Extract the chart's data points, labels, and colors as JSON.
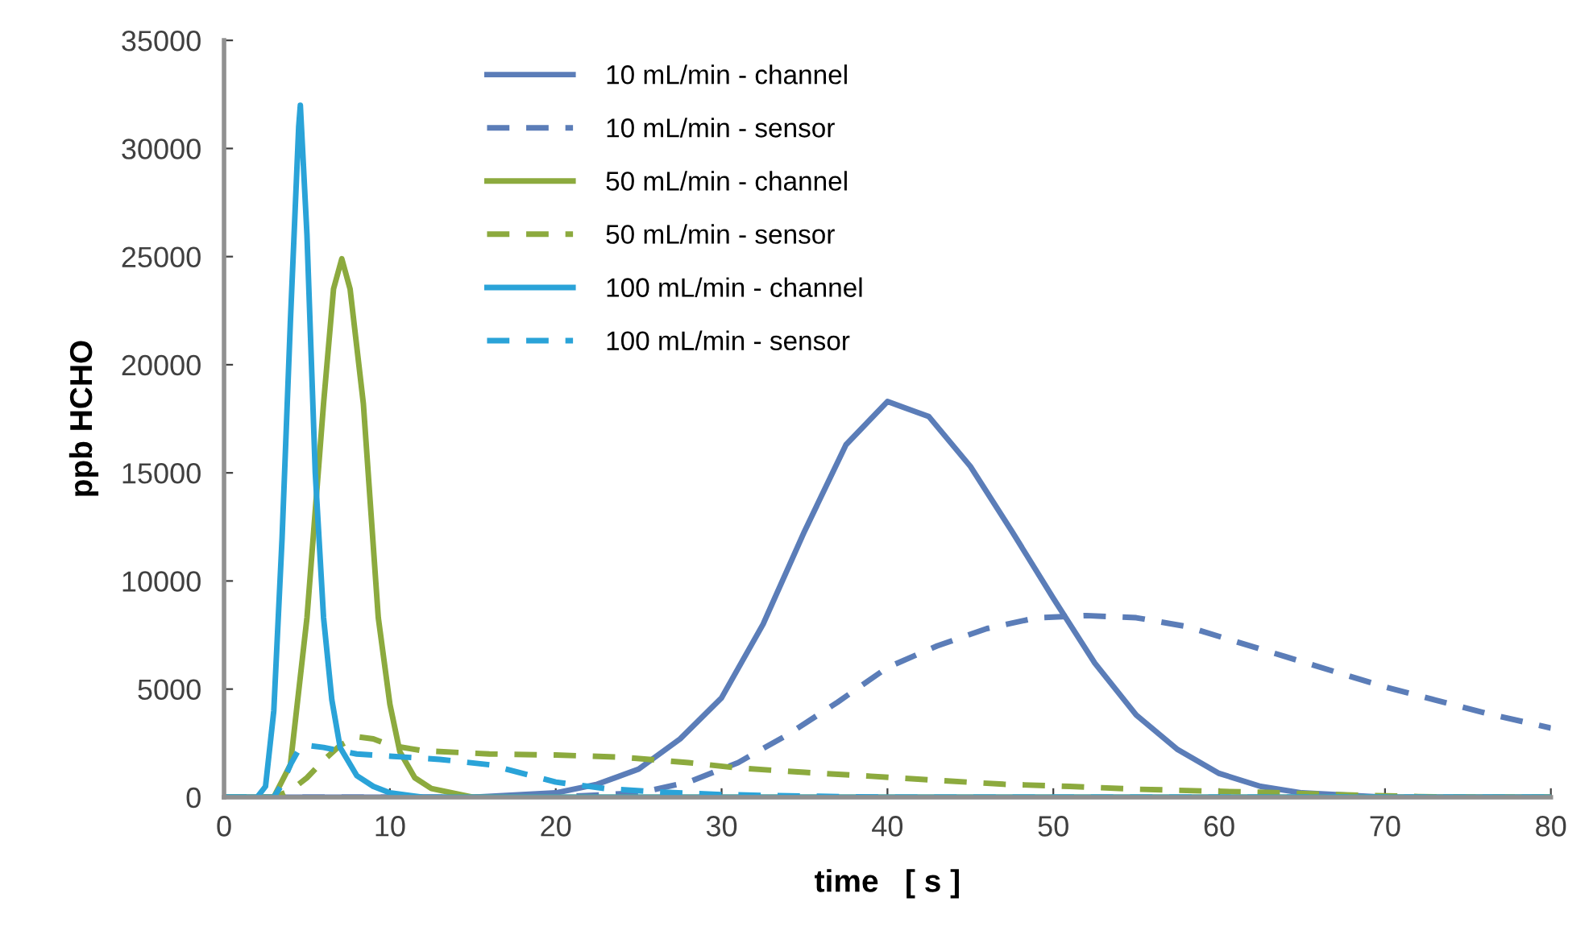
{
  "chart_data": {
    "type": "line",
    "xlabel": "time   [ s ]",
    "ylabel": "ppb HCHO",
    "xlim": [
      0,
      80
    ],
    "xticks": [
      0,
      10,
      20,
      30,
      40,
      50,
      60,
      70,
      80
    ],
    "ylim": [
      0,
      35000
    ],
    "yticks": [
      0,
      5000,
      10000,
      15000,
      20000,
      25000,
      30000,
      35000
    ],
    "grid": false,
    "legend": "top",
    "marker": "none",
    "series": [
      {
        "name": "10 mL/min - channel",
        "color": "#5b7db8",
        "line_style": "solid",
        "x": [
          0,
          15,
          20,
          22.5,
          25,
          27.5,
          30,
          32.5,
          35,
          37.5,
          40,
          42.5,
          45,
          47.5,
          50,
          52.5,
          55,
          57.5,
          60,
          62.5,
          65,
          70,
          80
        ],
        "values": [
          0,
          0,
          200,
          600,
          1300,
          2700,
          4600,
          8000,
          12300,
          16300,
          18300,
          17600,
          15300,
          12300,
          9200,
          6200,
          3800,
          2200,
          1100,
          500,
          200,
          0,
          0
        ]
      },
      {
        "name": "10 mL/min - sensor",
        "color": "#5b7db8",
        "line_style": "dashed",
        "x": [
          0,
          20,
          25,
          28,
          31,
          34,
          37,
          40,
          43,
          46,
          49,
          52,
          55,
          58,
          61,
          64,
          67,
          70,
          73,
          76,
          80
        ],
        "values": [
          0,
          0,
          200,
          700,
          1600,
          2900,
          4400,
          6000,
          7000,
          7800,
          8300,
          8400,
          8300,
          7900,
          7200,
          6500,
          5800,
          5100,
          4500,
          3900,
          3200
        ]
      },
      {
        "name": "50 mL/min - channel",
        "color": "#8caa3e",
        "line_style": "solid",
        "x": [
          0,
          3,
          4,
          5,
          6,
          6.6,
          7.1,
          7.6,
          8.4,
          9.3,
          10,
          10.6,
          11.5,
          12.5,
          15,
          80
        ],
        "values": [
          0,
          0,
          1500,
          8300,
          18200,
          23500,
          24900,
          23500,
          18200,
          8300,
          4300,
          2100,
          900,
          400,
          0,
          0
        ]
      },
      {
        "name": "50 mL/min - sensor",
        "color": "#8caa3e",
        "line_style": "dashed",
        "x": [
          0,
          3,
          4,
          5,
          6,
          7,
          8,
          9,
          10,
          12,
          16,
          20,
          24,
          28,
          31,
          35,
          39,
          43,
          47,
          51,
          55,
          59,
          63,
          68,
          72,
          75,
          80
        ],
        "values": [
          0,
          0,
          300,
          900,
          1700,
          2400,
          2800,
          2700,
          2400,
          2150,
          2000,
          1950,
          1850,
          1600,
          1350,
          1150,
          970,
          780,
          600,
          500,
          370,
          290,
          220,
          100,
          30,
          0,
          0
        ]
      },
      {
        "name": "100 mL/min - channel",
        "color": "#2aa3d8",
        "line_style": "solid",
        "x": [
          0,
          2,
          2.5,
          3,
          3.5,
          4,
          4.5,
          4.6,
          5,
          5.5,
          6,
          6.5,
          7,
          8,
          9,
          10,
          12,
          80
        ],
        "values": [
          0,
          0,
          500,
          4000,
          12000,
          22000,
          31000,
          32000,
          26000,
          15000,
          8300,
          4500,
          2300,
          1000,
          500,
          200,
          0,
          0
        ]
      },
      {
        "name": "100 mL/min - sensor",
        "color": "#2aa3d8",
        "line_style": "dashed",
        "x": [
          0,
          3,
          3.5,
          4,
          4.5,
          5,
          6,
          8,
          10,
          13,
          16,
          18,
          20,
          23,
          26,
          30,
          35,
          40,
          80
        ],
        "values": [
          0,
          0,
          600,
          1500,
          2200,
          2400,
          2300,
          2000,
          1900,
          1750,
          1500,
          1100,
          700,
          400,
          250,
          120,
          50,
          0,
          0
        ]
      }
    ]
  }
}
